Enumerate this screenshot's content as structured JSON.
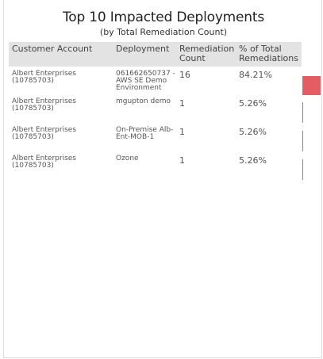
{
  "header": {
    "title": "Top 10 Impacted Deployments",
    "subtitle": "(by Total Remediation Count)"
  },
  "table": {
    "columns": [
      "Customer Account",
      "Deployment",
      "Remediation Count",
      "% of Total Remediations"
    ],
    "rows": [
      {
        "customer": "Albert Enterprises (10785703)",
        "deployment": "061662650737 - AWS SE Demo Environment",
        "count": "16",
        "percent": "84.21%",
        "share": 84.21
      },
      {
        "customer": "Albert Enterprises (10785703)",
        "deployment": "mgupton demo",
        "count": "1",
        "percent": "5.26%",
        "share": 5.26
      },
      {
        "customer": "Albert Enterprises (10785703)",
        "deployment": "On-Premise Alb-Ent-MOB-1",
        "count": "1",
        "percent": "5.26%",
        "share": 5.26
      },
      {
        "customer": "Albert Enterprises (10785703)",
        "deployment": "Ozone",
        "count": "1",
        "percent": "5.26%",
        "share": 5.26
      }
    ]
  },
  "colors": {
    "bar": "#e35d62",
    "header_bg": "#e3e3e3"
  }
}
